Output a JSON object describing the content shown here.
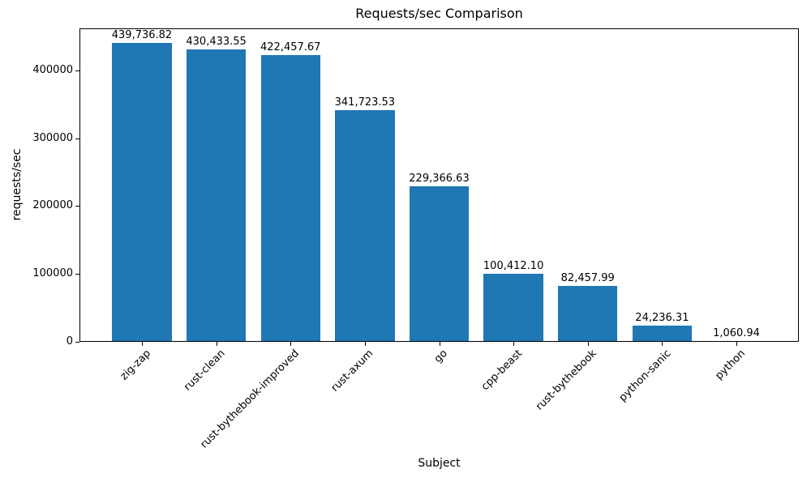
{
  "chart_data": {
    "type": "bar",
    "title": "Requests/sec Comparison",
    "xlabel": "Subject",
    "ylabel": "requests/sec",
    "categories": [
      "zig-zap",
      "rust-clean",
      "rust-bythebook-improved",
      "rust-axum",
      "go",
      "cpp-beast",
      "rust-bythebook",
      "python-sanic",
      "python"
    ],
    "values": [
      439736.82,
      430433.55,
      422457.67,
      341723.53,
      229366.63,
      100412.1,
      82457.99,
      24236.31,
      1060.94
    ],
    "bar_labels": [
      "439,736.82",
      "430,433.55",
      "422,457.67",
      "341,723.53",
      "229,366.63",
      "100,412.10",
      "82,457.99",
      "24,236.31",
      "1,060.94"
    ],
    "yticks": [
      0,
      100000,
      200000,
      300000,
      400000
    ],
    "ytick_labels": [
      "0",
      "100000",
      "200000",
      "300000",
      "400000"
    ],
    "ylim": [
      0,
      461723.66
    ],
    "grid": false,
    "legend": "none",
    "bar_color": "#1f77b4",
    "axis_color": "#000000"
  }
}
